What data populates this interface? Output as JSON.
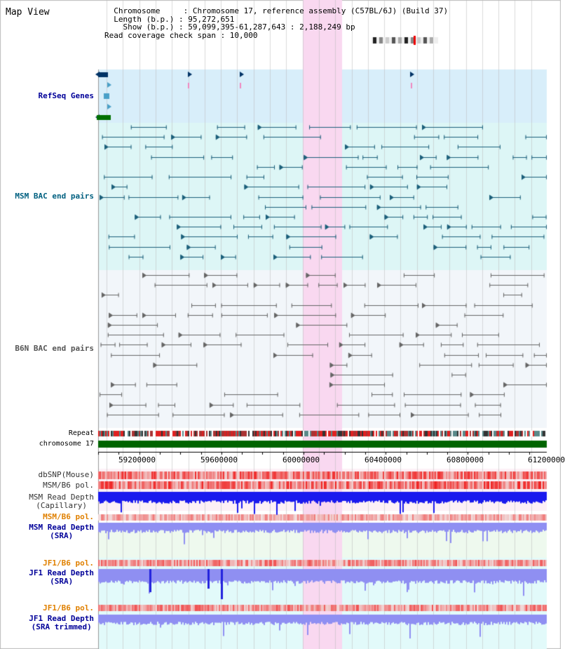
{
  "header": {
    "view_title": "Map View",
    "info_lines": [
      "  Chromosome     : Chromosome 17, reference assembly (C57BL/6J) (Build 37)",
      "  Length (b.p.) : 95,272,651",
      "    Show (b.p.) : 59,099,395-61,287,643 : 2,188,249 bp",
      "Read coverage check span : 10,000"
    ]
  },
  "tracks": {
    "refseq": {
      "label": "RefSeq Genes",
      "color": "#000099"
    },
    "msm_bac": {
      "label": "MSM BAC end pairs",
      "color": "#006080"
    },
    "b6n_bac": {
      "label": "B6N BAC end pairs",
      "color": "#555555"
    },
    "repeat": {
      "label": "Repeat"
    },
    "chrom": {
      "label": "chromosome 17"
    },
    "dbsnp": {
      "label": "dbSNP(Mouse)"
    },
    "msm_b6_pol": {
      "label": "MSM/B6 pol."
    },
    "msm_depth_cap": {
      "label": "MSM Read Depth\n(Capillary)"
    },
    "msm_b6_pol2": {
      "label": "MSM/B6 pol."
    },
    "msm_depth_sra": {
      "label": "MSM Read Depth\n(SRA)"
    },
    "jf1_b6_pol": {
      "label": "JF1/B6 pol."
    },
    "jf1_depth_sra": {
      "label": "JF1 Read Depth\n(SRA)"
    },
    "jf1_b6_pol2": {
      "label": "JF1/B6 pol."
    },
    "jf1_depth_trim": {
      "label": "JF1 Read Depth\n(SRA trimmed)"
    }
  },
  "axis": {
    "ticks": [
      "59200000",
      "59600000",
      "60000000",
      "60400000",
      "60800000",
      "61200000"
    ]
  },
  "colors": {
    "highlight": "#f9d8f0",
    "refseq_bg": "#d8eefa",
    "msm_bg": "#ddf6f6",
    "b6n_bg": "#f2f6fa",
    "chrom_green": "#006400",
    "depth_blue": "#1a1aee",
    "depth_light": "#8f8ff2",
    "snp_red": "#ee2020",
    "orange_label": "#e08000"
  }
}
